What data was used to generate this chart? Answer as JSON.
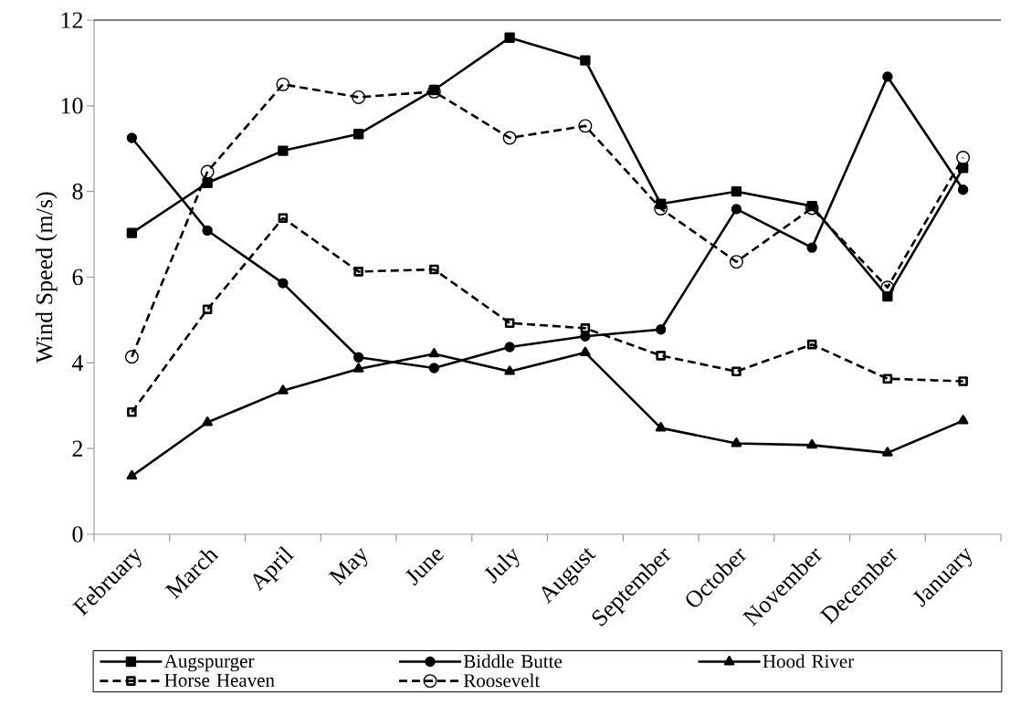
{
  "chart_data": {
    "type": "line",
    "ylabel": "Wind Speed (m/s)",
    "categories": [
      "February",
      "March",
      "April",
      "May",
      "June",
      "July",
      "August",
      "September",
      "October",
      "November",
      "December",
      "January"
    ],
    "series": [
      {
        "name": "Augspurger",
        "color": "#000000",
        "marker": "square",
        "line_style": "solid",
        "values": [
          7.03,
          8.2,
          8.95,
          9.34,
          10.37,
          11.59,
          11.06,
          7.71,
          8.0,
          7.66,
          5.55,
          8.55
        ]
      },
      {
        "name": "Biddle Butte",
        "color": "#000000",
        "marker": "circle",
        "line_style": "solid",
        "values": [
          9.25,
          7.09,
          5.86,
          4.13,
          3.88,
          4.37,
          4.62,
          4.78,
          7.59,
          6.69,
          10.68,
          8.04
        ]
      },
      {
        "name": "Hood River",
        "color": "#000000",
        "marker": "triangle",
        "line_style": "solid",
        "values": [
          1.36,
          2.61,
          3.35,
          3.86,
          4.21,
          3.8,
          4.24,
          2.48,
          2.12,
          2.08,
          1.9,
          2.65
        ]
      },
      {
        "name": "Horse Heaven",
        "color": "#000000",
        "marker": "square-open",
        "line_style": "dashed",
        "values": [
          2.85,
          5.25,
          7.38,
          6.13,
          6.18,
          4.93,
          4.81,
          4.17,
          3.8,
          4.43,
          3.63,
          3.57
        ]
      },
      {
        "name": "Roosevelt",
        "color": "#000000",
        "marker": "circle-open",
        "line_style": "dashed",
        "values": [
          4.14,
          8.46,
          10.5,
          10.2,
          10.33,
          9.25,
          9.53,
          7.6,
          6.36,
          7.61,
          5.76,
          8.79
        ]
      }
    ],
    "ylim": [
      0,
      12
    ],
    "yticks": [
      0,
      2,
      4,
      6,
      8,
      10,
      12
    ],
    "grid": false,
    "legend": "bottom"
  }
}
